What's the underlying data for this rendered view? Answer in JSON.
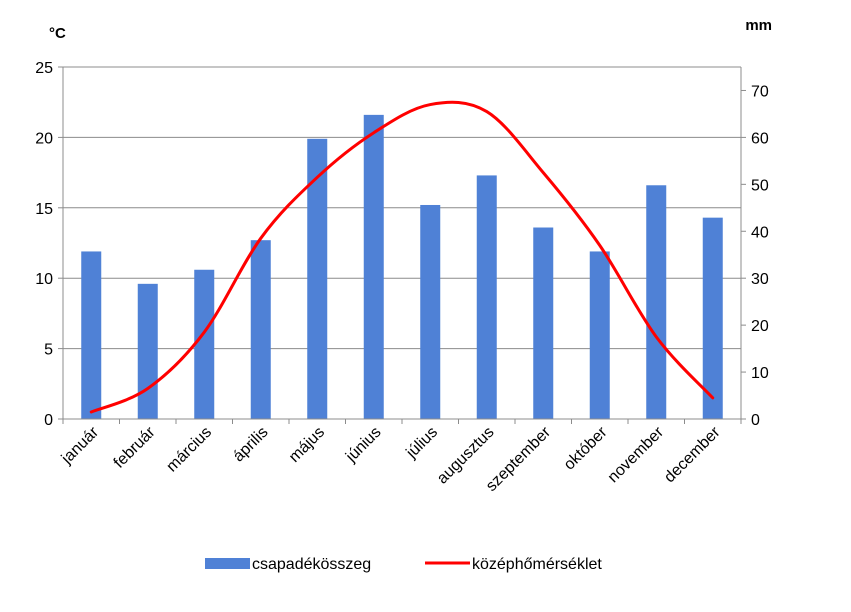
{
  "chart_data": {
    "type": "bar",
    "categories": [
      "január",
      "február",
      "március",
      "április",
      "május",
      "június",
      "július",
      "augusztus",
      "szeptember",
      "október",
      "november",
      "december"
    ],
    "left_axis": {
      "unit": "°C",
      "ylim": [
        0,
        25
      ],
      "ticks": [
        "0",
        "5",
        "10",
        "15",
        "20",
        "25"
      ]
    },
    "right_axis": {
      "unit": "mm",
      "ylim": [
        0,
        75
      ],
      "ticks": [
        "0",
        "10",
        "20",
        "30",
        "40",
        "50",
        "60",
        "70"
      ]
    },
    "series": [
      {
        "name": "csapadékösszeg",
        "type": "bar",
        "axis": "left",
        "color": "#4f81d6",
        "values": [
          11.9,
          9.6,
          10.6,
          12.7,
          19.9,
          21.6,
          15.2,
          17.3,
          13.6,
          11.9,
          16.6,
          14.3
        ]
      },
      {
        "name": "középhőmérséklet",
        "type": "line",
        "axis": "right",
        "color": "#ff0000",
        "values": [
          1.5,
          6.5,
          18.5,
          38.5,
          51.5,
          61,
          67,
          65.5,
          52.5,
          37,
          17.5,
          4.5
        ]
      }
    ],
    "grid": true,
    "legend": "bottom"
  }
}
